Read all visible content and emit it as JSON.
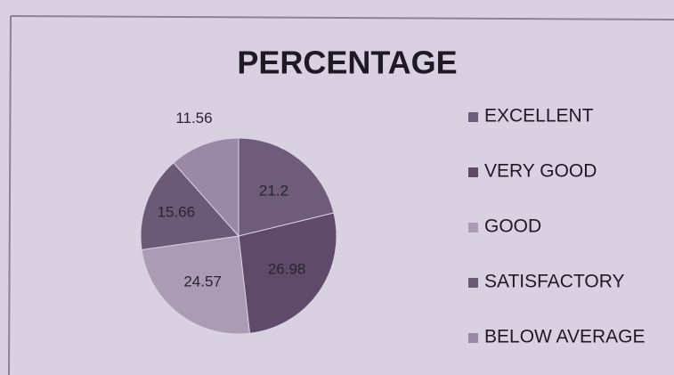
{
  "chart_data": {
    "type": "pie",
    "title": "PERCENTAGE",
    "categories": [
      "EXCELLENT",
      "VERY GOOD",
      "GOOD",
      "SATISFACTORY",
      "BELOW AVERAGE"
    ],
    "values": [
      21.2,
      26.98,
      24.57,
      15.66,
      11.56
    ],
    "colors": [
      "#6f5b7a",
      "#5f4b69",
      "#ab9bb4",
      "#6b5a75",
      "#9a89a5"
    ],
    "legend": "right"
  }
}
